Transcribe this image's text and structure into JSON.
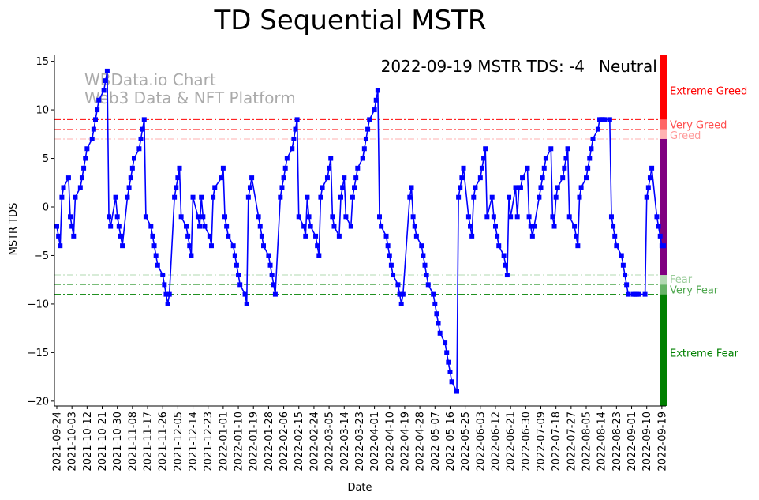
{
  "chart_data": {
    "type": "line",
    "title": "TD Sequential MSTR",
    "xlabel": "Date",
    "ylabel": "MSTR TDS",
    "ylim": [
      -20.5,
      15.7
    ],
    "yticks": [
      -20,
      -15,
      -10,
      -5,
      0,
      5,
      10,
      15
    ],
    "xlim": [
      0,
      361
    ],
    "xtick_labels": [
      "2021-09-24",
      "2021-10-03",
      "2021-10-12",
      "2021-10-21",
      "2021-10-30",
      "2021-11-08",
      "2021-11-17",
      "2021-11-26",
      "2021-12-05",
      "2021-12-14",
      "2021-12-23",
      "2022-01-01",
      "2022-01-10",
      "2022-01-19",
      "2022-01-28",
      "2022-02-06",
      "2022-02-15",
      "2022-02-24",
      "2022-03-05",
      "2022-03-14",
      "2022-03-23",
      "2022-04-01",
      "2022-04-10",
      "2022-04-19",
      "2022-04-28",
      "2022-05-07",
      "2022-05-16",
      "2022-05-25",
      "2022-06-03",
      "2022-06-12",
      "2022-06-21",
      "2022-06-30",
      "2022-07-09",
      "2022-07-18",
      "2022-07-27",
      "2022-08-05",
      "2022-08-14",
      "2022-08-23",
      "2022-09-01",
      "2022-09-10",
      "2022-09-19"
    ],
    "xtick_spacing_days": 9,
    "series": [
      {
        "name": "MSTR TDS",
        "color": "#0000ff",
        "marker": "square",
        "points": [
          [
            0,
            -2
          ],
          [
            1,
            -3
          ],
          [
            2,
            -4
          ],
          [
            3,
            1
          ],
          [
            4,
            2
          ],
          [
            7,
            3
          ],
          [
            8,
            -1
          ],
          [
            9,
            -2
          ],
          [
            10,
            -3
          ],
          [
            11,
            1
          ],
          [
            14,
            2
          ],
          [
            15,
            3
          ],
          [
            16,
            4
          ],
          [
            17,
            5
          ],
          [
            18,
            6
          ],
          [
            21,
            7
          ],
          [
            22,
            8
          ],
          [
            23,
            9
          ],
          [
            24,
            10
          ],
          [
            25,
            11
          ],
          [
            28,
            12
          ],
          [
            29,
            13
          ],
          [
            30,
            14
          ],
          [
            31,
            -1
          ],
          [
            32,
            -2
          ],
          [
            35,
            1
          ],
          [
            36,
            -1
          ],
          [
            37,
            -2
          ],
          [
            38,
            -3
          ],
          [
            39,
            -4
          ],
          [
            42,
            1
          ],
          [
            43,
            2
          ],
          [
            44,
            3
          ],
          [
            45,
            4
          ],
          [
            46,
            5
          ],
          [
            49,
            6
          ],
          [
            50,
            7
          ],
          [
            51,
            8
          ],
          [
            52,
            9
          ],
          [
            53,
            -1
          ],
          [
            56,
            -2
          ],
          [
            57,
            -3
          ],
          [
            58,
            -4
          ],
          [
            59,
            -5
          ],
          [
            60,
            -6
          ],
          [
            63,
            -7
          ],
          [
            64,
            -8
          ],
          [
            65,
            -9
          ],
          [
            66,
            -10
          ],
          [
            67,
            -9
          ],
          [
            70,
            1
          ],
          [
            71,
            2
          ],
          [
            72,
            3
          ],
          [
            73,
            4
          ],
          [
            74,
            -1
          ],
          [
            77,
            -2
          ],
          [
            78,
            -3
          ],
          [
            79,
            -4
          ],
          [
            80,
            -5
          ],
          [
            81,
            1
          ],
          [
            84,
            -1
          ],
          [
            85,
            -2
          ],
          [
            86,
            1
          ],
          [
            87,
            -1
          ],
          [
            88,
            -2
          ],
          [
            91,
            -3
          ],
          [
            92,
            -4
          ],
          [
            93,
            1
          ],
          [
            94,
            2
          ],
          [
            98,
            3
          ],
          [
            99,
            4
          ],
          [
            100,
            -1
          ],
          [
            101,
            -2
          ],
          [
            102,
            -3
          ],
          [
            105,
            -4
          ],
          [
            106,
            -5
          ],
          [
            107,
            -6
          ],
          [
            108,
            -7
          ],
          [
            109,
            -8
          ],
          [
            112,
            -9
          ],
          [
            113,
            -10
          ],
          [
            114,
            1
          ],
          [
            115,
            2
          ],
          [
            116,
            3
          ],
          [
            120,
            -1
          ],
          [
            121,
            -2
          ],
          [
            122,
            -3
          ],
          [
            123,
            -4
          ],
          [
            126,
            -5
          ],
          [
            127,
            -6
          ],
          [
            128,
            -7
          ],
          [
            129,
            -8
          ],
          [
            130,
            -9
          ],
          [
            133,
            1
          ],
          [
            134,
            2
          ],
          [
            135,
            3
          ],
          [
            136,
            4
          ],
          [
            137,
            5
          ],
          [
            140,
            6
          ],
          [
            141,
            7
          ],
          [
            142,
            8
          ],
          [
            143,
            9
          ],
          [
            144,
            -1
          ],
          [
            147,
            -2
          ],
          [
            148,
            -3
          ],
          [
            149,
            1
          ],
          [
            150,
            -1
          ],
          [
            151,
            -2
          ],
          [
            154,
            -3
          ],
          [
            155,
            -4
          ],
          [
            156,
            -5
          ],
          [
            157,
            1
          ],
          [
            158,
            2
          ],
          [
            161,
            3
          ],
          [
            162,
            4
          ],
          [
            163,
            5
          ],
          [
            164,
            -1
          ],
          [
            165,
            -2
          ],
          [
            168,
            -3
          ],
          [
            169,
            1
          ],
          [
            170,
            2
          ],
          [
            171,
            3
          ],
          [
            172,
            -1
          ],
          [
            175,
            -2
          ],
          [
            176,
            1
          ],
          [
            177,
            2
          ],
          [
            178,
            3
          ],
          [
            179,
            4
          ],
          [
            182,
            5
          ],
          [
            183,
            6
          ],
          [
            184,
            7
          ],
          [
            185,
            8
          ],
          [
            186,
            9
          ],
          [
            189,
            10
          ],
          [
            190,
            11
          ],
          [
            191,
            12
          ],
          [
            192,
            -1
          ],
          [
            193,
            -2
          ],
          [
            196,
            -3
          ],
          [
            197,
            -4
          ],
          [
            198,
            -5
          ],
          [
            199,
            -6
          ],
          [
            200,
            -7
          ],
          [
            203,
            -8
          ],
          [
            204,
            -9
          ],
          [
            205,
            -10
          ],
          [
            206,
            -9
          ],
          [
            210,
            1
          ],
          [
            211,
            2
          ],
          [
            212,
            -1
          ],
          [
            213,
            -2
          ],
          [
            214,
            -3
          ],
          [
            217,
            -4
          ],
          [
            218,
            -5
          ],
          [
            219,
            -6
          ],
          [
            220,
            -7
          ],
          [
            221,
            -8
          ],
          [
            224,
            -9
          ],
          [
            225,
            -10
          ],
          [
            226,
            -11
          ],
          [
            227,
            -12
          ],
          [
            228,
            -13
          ],
          [
            231,
            -14
          ],
          [
            232,
            -15
          ],
          [
            233,
            -16
          ],
          [
            234,
            -17
          ],
          [
            235,
            -18
          ],
          [
            238,
            -19
          ],
          [
            239,
            1
          ],
          [
            240,
            2
          ],
          [
            241,
            3
          ],
          [
            242,
            4
          ],
          [
            245,
            -1
          ],
          [
            246,
            -2
          ],
          [
            247,
            -3
          ],
          [
            248,
            1
          ],
          [
            249,
            2
          ],
          [
            252,
            3
          ],
          [
            253,
            4
          ],
          [
            254,
            5
          ],
          [
            255,
            6
          ],
          [
            256,
            -1
          ],
          [
            259,
            1
          ],
          [
            260,
            -1
          ],
          [
            261,
            -2
          ],
          [
            262,
            -3
          ],
          [
            263,
            -4
          ],
          [
            266,
            -5
          ],
          [
            267,
            -6
          ],
          [
            268,
            -7
          ],
          [
            269,
            1
          ],
          [
            270,
            -1
          ],
          [
            273,
            2
          ],
          [
            274,
            -1
          ],
          [
            275,
            2
          ],
          [
            276,
            2
          ],
          [
            277,
            3
          ],
          [
            280,
            4
          ],
          [
            281,
            -1
          ],
          [
            282,
            -2
          ],
          [
            283,
            -3
          ],
          [
            284,
            -2
          ],
          [
            287,
            1
          ],
          [
            288,
            2
          ],
          [
            289,
            3
          ],
          [
            290,
            4
          ],
          [
            291,
            5
          ],
          [
            294,
            6
          ],
          [
            295,
            -1
          ],
          [
            296,
            -2
          ],
          [
            297,
            1
          ],
          [
            298,
            2
          ],
          [
            301,
            3
          ],
          [
            302,
            4
          ],
          [
            303,
            5
          ],
          [
            304,
            6
          ],
          [
            305,
            -1
          ],
          [
            308,
            -2
          ],
          [
            309,
            -3
          ],
          [
            310,
            -4
          ],
          [
            311,
            1
          ],
          [
            312,
            2
          ],
          [
            315,
            3
          ],
          [
            316,
            4
          ],
          [
            317,
            5
          ],
          [
            318,
            6
          ],
          [
            319,
            7
          ],
          [
            322,
            8
          ],
          [
            323,
            9
          ],
          [
            324,
            9
          ],
          [
            325,
            9
          ],
          [
            326,
            9
          ],
          [
            329,
            9
          ],
          [
            330,
            -1
          ],
          [
            331,
            -2
          ],
          [
            332,
            -3
          ],
          [
            333,
            -4
          ],
          [
            336,
            -5
          ],
          [
            337,
            -6
          ],
          [
            338,
            -7
          ],
          [
            339,
            -8
          ],
          [
            340,
            -9
          ],
          [
            343,
            -9
          ],
          [
            344,
            -9
          ],
          [
            345,
            -9
          ],
          [
            346,
            -9
          ],
          [
            350,
            -9
          ],
          [
            351,
            1
          ],
          [
            352,
            2
          ],
          [
            353,
            3
          ],
          [
            354,
            4
          ],
          [
            357,
            -1
          ],
          [
            358,
            -2
          ],
          [
            359,
            -3
          ],
          [
            360,
            -4
          ],
          [
            361,
            -4
          ]
        ]
      }
    ],
    "reference_lines": [
      {
        "y": 9,
        "color": "#ff0000",
        "opacity": 1.0
      },
      {
        "y": 8,
        "color": "#ff0000",
        "opacity": 0.6
      },
      {
        "y": 7,
        "color": "#ff0000",
        "opacity": 0.3
      },
      {
        "y": -7,
        "color": "#008000",
        "opacity": 0.3
      },
      {
        "y": -8,
        "color": "#008000",
        "opacity": 0.6
      },
      {
        "y": -9,
        "color": "#008000",
        "opacity": 1.0
      }
    ],
    "sentiment_bar": [
      {
        "from": 9,
        "to": 15.7,
        "color": "#ff0000",
        "opacity": 1.0
      },
      {
        "from": 8,
        "to": 9,
        "color": "#ff0000",
        "opacity": 0.6
      },
      {
        "from": 7,
        "to": 8,
        "color": "#ff0000",
        "opacity": 0.3
      },
      {
        "from": -7,
        "to": 7,
        "color": "#800080",
        "opacity": 1.0
      },
      {
        "from": -8,
        "to": -7,
        "color": "#008000",
        "opacity": 0.3
      },
      {
        "from": -9,
        "to": -8,
        "color": "#008000",
        "opacity": 0.6
      },
      {
        "from": -20.5,
        "to": -9,
        "color": "#008000",
        "opacity": 1.0
      }
    ],
    "zone_labels": [
      {
        "text": "Extreme Greed",
        "y": 12,
        "color": "#ff0000",
        "opacity": 1.0
      },
      {
        "text": "Very Greed",
        "y": 8.5,
        "color": "#ff0000",
        "opacity": 0.7
      },
      {
        "text": "Greed",
        "y": 7.4,
        "color": "#ff0000",
        "opacity": 0.4
      },
      {
        "text": "Fear",
        "y": -7.4,
        "color": "#008000",
        "opacity": 0.4
      },
      {
        "text": "Very Fear",
        "y": -8.5,
        "color": "#008000",
        "opacity": 0.7
      },
      {
        "text": "Extreme Fear",
        "y": -15,
        "color": "#008000",
        "opacity": 1.0
      }
    ],
    "watermark": [
      "WBData.io Chart",
      "Web3 Data & NFT Platform"
    ],
    "status": {
      "text": "2022-09-19 MSTR TDS: -4",
      "sentiment": "Neutral",
      "sentiment_color": "#800080"
    }
  }
}
